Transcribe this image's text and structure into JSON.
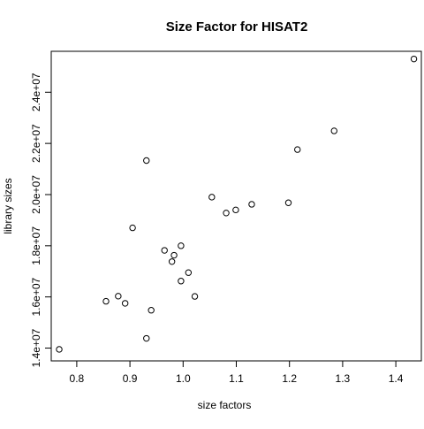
{
  "chart_data": {
    "type": "scatter",
    "title": "Size Factor for HISAT2",
    "xlabel": "size factors",
    "ylabel": "library sizes",
    "xlim": [
      0.752,
      1.448
    ],
    "ylim": [
      13500000,
      25600000
    ],
    "xticks": [
      0.8,
      0.9,
      1.0,
      1.1,
      1.2,
      1.3,
      1.4
    ],
    "xtick_labels": [
      "0.8",
      "0.9",
      "1.0",
      "1.1",
      "1.2",
      "1.3",
      "1.4"
    ],
    "yticks": [
      14000000,
      16000000,
      18000000,
      20000000,
      22000000,
      24000000
    ],
    "ytick_labels": [
      "1.4e+07",
      "1.6e+07",
      "1.8e+07",
      "2.0e+07",
      "2.2e+07",
      "2.4e+07"
    ],
    "grid": false,
    "marker": "open-circle",
    "colors": {
      "points": "#000000",
      "axes": "#000000",
      "background": "#ffffff"
    },
    "points": [
      {
        "x": 0.767,
        "y": 13950000
      },
      {
        "x": 0.855,
        "y": 15830000
      },
      {
        "x": 0.878,
        "y": 16030000
      },
      {
        "x": 0.891,
        "y": 15750000
      },
      {
        "x": 0.905,
        "y": 18700000
      },
      {
        "x": 0.931,
        "y": 21330000
      },
      {
        "x": 0.931,
        "y": 14380000
      },
      {
        "x": 0.94,
        "y": 15480000
      },
      {
        "x": 0.965,
        "y": 17820000
      },
      {
        "x": 0.979,
        "y": 17380000
      },
      {
        "x": 0.983,
        "y": 17630000
      },
      {
        "x": 0.996,
        "y": 18000000
      },
      {
        "x": 0.996,
        "y": 16620000
      },
      {
        "x": 1.01,
        "y": 16950000
      },
      {
        "x": 1.022,
        "y": 16020000
      },
      {
        "x": 1.054,
        "y": 19900000
      },
      {
        "x": 1.081,
        "y": 19280000
      },
      {
        "x": 1.099,
        "y": 19400000
      },
      {
        "x": 1.129,
        "y": 19620000
      },
      {
        "x": 1.198,
        "y": 19680000
      },
      {
        "x": 1.215,
        "y": 21760000
      },
      {
        "x": 1.284,
        "y": 22490000
      },
      {
        "x": 1.434,
        "y": 25300000
      }
    ]
  }
}
